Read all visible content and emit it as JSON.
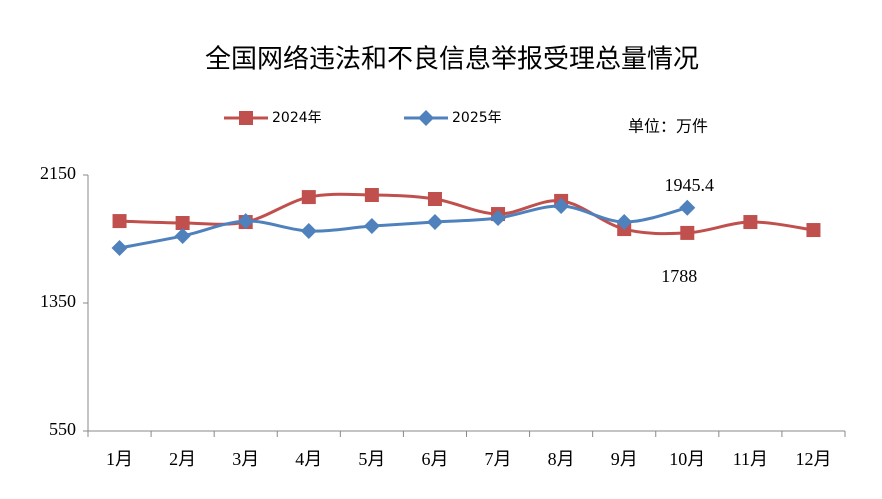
{
  "chart_data": {
    "type": "line",
    "title": "全国网络违法和不良信息举报受理总量情况",
    "unit_label": "单位：万件",
    "categories": [
      "1月",
      "2月",
      "3月",
      "4月",
      "5月",
      "6月",
      "7月",
      "8月",
      "9月",
      "10月",
      "11月",
      "12月"
    ],
    "series": [
      {
        "name": "2024年",
        "color": "#c0504d",
        "marker": "square",
        "values": [
          1862,
          1850,
          1856,
          2012,
          2025,
          2000,
          1906,
          1988,
          1812,
          1788,
          1856,
          1806
        ],
        "value_labels": [
          null,
          null,
          null,
          null,
          null,
          null,
          null,
          null,
          null,
          "1788",
          null,
          null
        ]
      },
      {
        "name": "2025年",
        "color": "#4f81bd",
        "marker": "diamond",
        "values": [
          1694,
          1769,
          1862,
          1800,
          1831,
          1856,
          1881,
          1956,
          1856,
          1945.4,
          null,
          null
        ],
        "value_labels": [
          null,
          null,
          null,
          null,
          null,
          null,
          null,
          null,
          null,
          "1945.4",
          null,
          null
        ]
      }
    ],
    "ylim": [
      550,
      2150
    ],
    "yticks": [
      550,
      1350,
      2150
    ],
    "grid": false,
    "legend": "top"
  }
}
